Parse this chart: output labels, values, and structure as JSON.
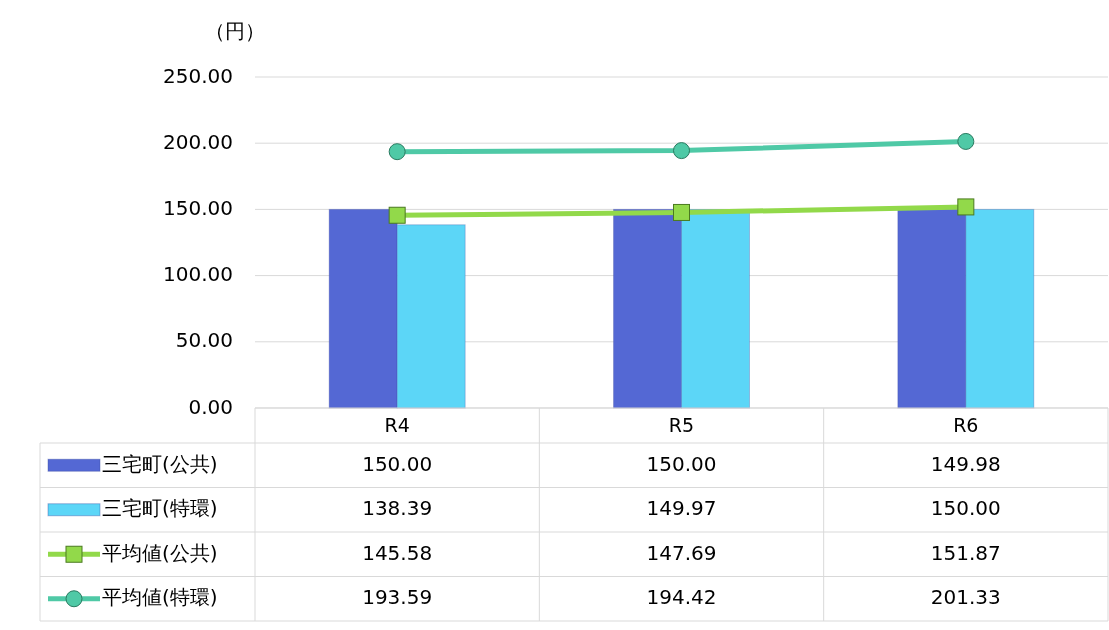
{
  "chart_data": {
    "type": "bar",
    "ylabel": "（円）",
    "categories": [
      "R4",
      "R5",
      "R6"
    ],
    "series": [
      {
        "name": "三宅町(公共)",
        "color": "#5468d4",
        "values": [
          150.0,
          150.0,
          149.98
        ],
        "value_labels": [
          "150.00",
          "150.00",
          "149.98"
        ]
      },
      {
        "name": "三宅町(特環)",
        "color": "#5cd6f7",
        "values": [
          138.39,
          149.97,
          150.0
        ],
        "value_labels": [
          "138.39",
          "149.97",
          "150.00"
        ]
      },
      {
        "name": "平均値(公共)",
        "type": "line",
        "marker": "square",
        "color": "#92d94a",
        "values": [
          145.58,
          147.69,
          151.87
        ],
        "value_labels": [
          "145.58",
          "147.69",
          "151.87"
        ]
      },
      {
        "name": "平均値(特環)",
        "type": "line",
        "marker": "circle",
        "color": "#4fc9a6",
        "values": [
          193.59,
          194.42,
          201.33
        ],
        "value_labels": [
          "193.59",
          "194.42",
          "201.33"
        ]
      }
    ],
    "ylim": [
      0,
      250
    ],
    "yticks": [
      {
        "value": 0,
        "label": "0.00"
      },
      {
        "value": 50,
        "label": "50.00"
      },
      {
        "value": 100,
        "label": "100.00"
      },
      {
        "value": 150,
        "label": "150.00"
      },
      {
        "value": 200,
        "label": "200.00"
      },
      {
        "value": 250,
        "label": "250.00"
      }
    ],
    "grid": "y",
    "legend": "bottom"
  }
}
